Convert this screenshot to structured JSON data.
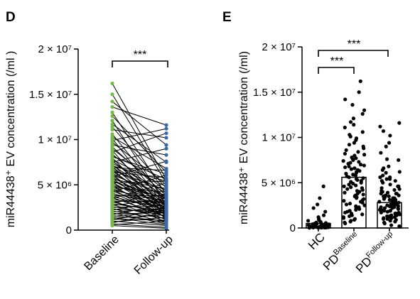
{
  "figure": {
    "panels": [
      {
        "label": "D",
        "ylabel": "miR44438⁺ EV concentration (/ml )",
        "y_ticks": [
          "0",
          "5 × 10⁶",
          "1 × 10⁷",
          "1.5 × 10⁷",
          "2 × 10⁷"
        ],
        "x_tick_labels": [
          "Baseline",
          "Follow-up"
        ],
        "significance": [
          "***"
        ]
      },
      {
        "label": "E",
        "ylabel": "miR44438⁺ EV concentration (/ml)",
        "y_ticks": [
          "0",
          "5 × 10⁶",
          "1 × 10⁷",
          "1.5 × 10⁷",
          "2 × 10⁷"
        ],
        "x_tick_labels": [
          {
            "main": "HC",
            "sup": ""
          },
          {
            "main": "PD",
            "sup": "Baseline"
          },
          {
            "main": "PD",
            "sup": "Follow-up"
          }
        ],
        "significance": [
          "***",
          "***"
        ]
      }
    ]
  },
  "chart_data": [
    {
      "type": "scatter",
      "subtype": "paired before-after",
      "title": "",
      "panel_label": "D",
      "xlabel": "",
      "ylabel": "miR44438⁺ EV concentration (/ml )",
      "ylim": [
        0,
        20000000
      ],
      "y_ticks": [
        0,
        5000000,
        10000000,
        15000000,
        20000000
      ],
      "categories": [
        "Baseline",
        "Follow-up"
      ],
      "series_colors": {
        "Baseline": "#79b94a",
        "Follow-up": "#3a68a8",
        "connector": "#000000"
      },
      "pairs": [
        [
          16200000,
          5600000
        ],
        [
          15000000,
          5200000
        ],
        [
          14200000,
          9400000
        ],
        [
          13600000,
          11600000
        ],
        [
          13000000,
          3900000
        ],
        [
          12600000,
          6400000
        ],
        [
          12100000,
          2800000
        ],
        [
          11700000,
          7500000
        ],
        [
          11400000,
          4600000
        ],
        [
          11100000,
          10200000
        ],
        [
          10600000,
          3300000
        ],
        [
          10300000,
          6800000
        ],
        [
          10100000,
          2500000
        ],
        [
          9900000,
          11200000
        ],
        [
          9700000,
          5000000
        ],
        [
          9400000,
          8300000
        ],
        [
          9200000,
          3800000
        ],
        [
          9000000,
          4300000
        ],
        [
          8800000,
          2100000
        ],
        [
          8600000,
          10700000
        ],
        [
          8400000,
          3300000
        ],
        [
          8200000,
          5600000
        ],
        [
          8100000,
          6200000
        ],
        [
          8000000,
          1900000
        ],
        [
          7800000,
          4800000
        ],
        [
          7700000,
          2700000
        ],
        [
          7600000,
          3600000
        ],
        [
          7500000,
          9000000
        ],
        [
          7400000,
          4100000
        ],
        [
          7300000,
          1500000
        ],
        [
          7200000,
          3100000
        ],
        [
          7100000,
          5400000
        ],
        [
          7000000,
          2300000
        ],
        [
          6900000,
          6600000
        ],
        [
          6800000,
          3500000
        ],
        [
          6700000,
          1800000
        ],
        [
          6600000,
          4400000
        ],
        [
          6500000,
          2600000
        ],
        [
          6400000,
          5800000
        ],
        [
          6300000,
          3000000
        ],
        [
          6200000,
          1200000
        ],
        [
          6100000,
          3800000
        ],
        [
          6000000,
          2200000
        ],
        [
          5900000,
          7600000
        ],
        [
          5800000,
          2900000
        ],
        [
          5700000,
          1600000
        ],
        [
          5600000,
          4600000
        ],
        [
          5500000,
          2400000
        ],
        [
          5400000,
          3400000
        ],
        [
          5300000,
          1900000
        ],
        [
          5200000,
          5400000
        ],
        [
          5100000,
          2800000
        ],
        [
          5000000,
          1300000
        ],
        [
          4900000,
          3600000
        ],
        [
          4800000,
          2000000
        ],
        [
          4700000,
          4200000
        ],
        [
          4600000,
          2500000
        ],
        [
          4500000,
          1400000
        ],
        [
          4400000,
          3200000
        ],
        [
          4300000,
          2200000
        ],
        [
          4200000,
          6100000
        ],
        [
          4100000,
          1700000
        ],
        [
          4000000,
          2900000
        ],
        [
          3900000,
          1100000
        ],
        [
          3800000,
          3800000
        ],
        [
          3700000,
          2300000
        ],
        [
          3600000,
          1500000
        ],
        [
          3500000,
          5200000
        ],
        [
          3400000,
          2600000
        ],
        [
          3300000,
          900000
        ],
        [
          3200000,
          3100000
        ],
        [
          3100000,
          1800000
        ],
        [
          3000000,
          4000000
        ],
        [
          2900000,
          2100000
        ],
        [
          2800000,
          1200000
        ],
        [
          2700000,
          3500000
        ],
        [
          2600000,
          1600000
        ],
        [
          2500000,
          2700000
        ],
        [
          2400000,
          800000
        ],
        [
          2300000,
          2000000
        ],
        [
          2200000,
          3300000
        ],
        [
          2100000,
          1300000
        ],
        [
          2000000,
          2400000
        ],
        [
          1900000,
          700000
        ],
        [
          1800000,
          1900000
        ],
        [
          1700000,
          2900000
        ],
        [
          1600000,
          1000000
        ],
        [
          1500000,
          2200000
        ],
        [
          1400000,
          600000
        ],
        [
          1300000,
          1700000
        ],
        [
          1200000,
          1100000
        ],
        [
          1100000,
          2600000
        ],
        [
          1000000,
          500000
        ],
        [
          900000,
          1400000
        ],
        [
          800000,
          2000000
        ],
        [
          700000,
          300000
        ],
        [
          600000,
          1000000
        ],
        [
          500000,
          200000
        ]
      ],
      "annotations": [
        {
          "between": [
            "Baseline",
            "Follow-up"
          ],
          "text": "***"
        }
      ]
    },
    {
      "type": "bar",
      "subtype": "bar with individual points",
      "title": "",
      "panel_label": "E",
      "xlabel": "",
      "ylabel": "miR44438⁺ EV concentration (/ml)",
      "ylim": [
        0,
        20000000
      ],
      "y_ticks": [
        0,
        5000000,
        10000000,
        15000000,
        20000000
      ],
      "categories": [
        "HC",
        "PD^Baseline",
        "PD^Follow-up"
      ],
      "values": [
        500000,
        5600000,
        2800000
      ],
      "points": [
        [
          4600000,
          3300000,
          2600000,
          2200000,
          1800000,
          1400000,
          1200000,
          1000000,
          900000,
          800000,
          700000,
          650000,
          600000,
          550000,
          500000,
          450000,
          420000,
          400000,
          380000,
          350000,
          320000,
          300000,
          280000,
          260000,
          240000,
          220000,
          200000,
          180000,
          160000,
          150000,
          140000,
          130000,
          120000,
          110000,
          100000,
          90000,
          80000,
          70000,
          60000,
          50000,
          40000,
          30000,
          20000,
          10000
        ],
        [
          16200000,
          15000000,
          14200000,
          13600000,
          13000000,
          12600000,
          12100000,
          11700000,
          11400000,
          11100000,
          10600000,
          10300000,
          10100000,
          9900000,
          9700000,
          9400000,
          9200000,
          9000000,
          8800000,
          8600000,
          8400000,
          8200000,
          8100000,
          8000000,
          7800000,
          7700000,
          7600000,
          7500000,
          7400000,
          7300000,
          7200000,
          7100000,
          7000000,
          6900000,
          6800000,
          6700000,
          6600000,
          6500000,
          6400000,
          6300000,
          6200000,
          6100000,
          6000000,
          5900000,
          5800000,
          5700000,
          5600000,
          5500000,
          5400000,
          5300000,
          5200000,
          5100000,
          5000000,
          4900000,
          4800000,
          4700000,
          4600000,
          4500000,
          4400000,
          4300000,
          4200000,
          4100000,
          4000000,
          3900000,
          3800000,
          3700000,
          3600000,
          3500000,
          3400000,
          3300000,
          3200000,
          3100000,
          3000000,
          2900000,
          2800000,
          2700000,
          2600000,
          2500000,
          2400000,
          2300000,
          2200000,
          2100000,
          2000000,
          1900000,
          1800000,
          1700000,
          1600000,
          1500000,
          1400000,
          1300000,
          1200000,
          1100000,
          1000000,
          900000,
          800000,
          700000,
          600000,
          500000
        ],
        [
          11600000,
          11200000,
          10700000,
          10200000,
          9400000,
          9000000,
          8300000,
          7600000,
          7500000,
          6800000,
          6600000,
          6400000,
          6200000,
          6100000,
          5800000,
          5600000,
          5600000,
          5400000,
          5400000,
          5200000,
          5200000,
          5000000,
          4800000,
          4600000,
          4600000,
          4400000,
          4300000,
          4200000,
          4100000,
          4000000,
          3900000,
          3800000,
          3800000,
          3800000,
          3600000,
          3600000,
          3500000,
          3500000,
          3400000,
          3300000,
          3300000,
          3300000,
          3200000,
          3100000,
          3100000,
          3000000,
          2900000,
          2900000,
          2900000,
          2800000,
          2800000,
          2700000,
          2700000,
          2600000,
          2600000,
          2600000,
          2500000,
          2500000,
          2400000,
          2400000,
          2300000,
          2300000,
          2200000,
          2200000,
          2200000,
          2100000,
          2100000,
          2000000,
          2000000,
          2000000,
          1900000,
          1900000,
          1900000,
          1800000,
          1800000,
          1700000,
          1700000,
          1600000,
          1600000,
          1500000,
          1500000,
          1400000,
          1400000,
          1300000,
          1300000,
          1200000,
          1200000,
          1100000,
          1100000,
          1000000,
          1000000,
          900000,
          800000,
          700000,
          600000,
          500000,
          300000,
          200000
        ]
      ],
      "point_color": "#000000",
      "bar_fill": "#ffffff",
      "annotations": [
        {
          "between": [
            "HC",
            "PD^Baseline"
          ],
          "text": "***"
        },
        {
          "between": [
            "HC",
            "PD^Follow-up"
          ],
          "text": "***"
        }
      ]
    }
  ]
}
